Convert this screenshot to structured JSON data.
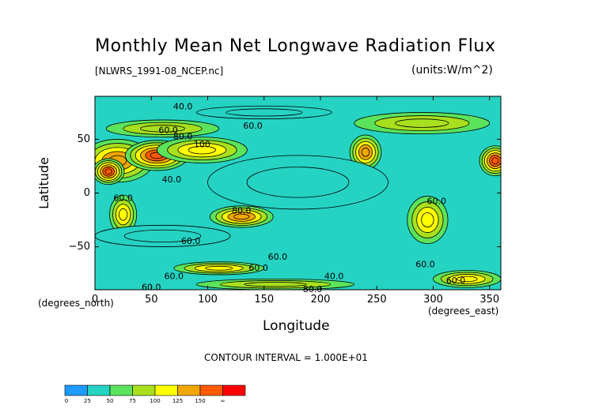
{
  "chart_data": {
    "type": "heatmap",
    "title": "Monthly Mean Net Longwave Radiation Flux",
    "subtitle": "[NLWRS_1991-08_NCEP.nc]",
    "units_label": "(units:W/m^2)",
    "xlabel": "Longitude",
    "ylabel": "Latitude",
    "xunits_label": "(degrees_east)",
    "yunits_label": "(degrees_north)",
    "contour_interval_label": "CONTOUR INTERVAL = 1.000E+01",
    "xlim": [
      0,
      360
    ],
    "ylim": [
      -90,
      90
    ],
    "x_ticks": [
      "0",
      "50",
      "100",
      "150",
      "200",
      "250",
      "300",
      "350"
    ],
    "y_ticks": [
      "50",
      "0",
      "−50"
    ],
    "x_tick_values": [
      0,
      50,
      100,
      150,
      200,
      250,
      300,
      350
    ],
    "y_tick_values": [
      50,
      0,
      -50
    ],
    "background_value": 45,
    "levels": [
      0,
      25,
      50,
      75,
      100,
      125,
      150
    ],
    "colorbar_ticks": [
      "0",
      "25",
      "50",
      "75",
      "100",
      "125",
      "150",
      "∞"
    ],
    "colorbar_colors": [
      "#1e9bff",
      "#25d3c3",
      "#5be35b",
      "#a8e01e",
      "#ffff00",
      "#f0a800",
      "#ff5a00",
      "#ff0000"
    ],
    "features": [
      {
        "lon": 20,
        "lat": 30,
        "rlon": 32,
        "rlat": 20,
        "value": 140
      },
      {
        "lon": 55,
        "lat": 35,
        "rlon": 28,
        "rlat": 14,
        "value": 160
      },
      {
        "lon": 95,
        "lat": 40,
        "rlon": 40,
        "rlat": 12,
        "value": 120
      },
      {
        "lon": 12,
        "lat": 20,
        "rlon": 14,
        "rlat": 12,
        "value": 165
      },
      {
        "lon": 355,
        "lat": 30,
        "rlon": 14,
        "rlat": 14,
        "value": 150
      },
      {
        "lon": 240,
        "lat": 38,
        "rlon": 14,
        "rlat": 16,
        "value": 130
      },
      {
        "lon": 130,
        "lat": -22,
        "rlon": 28,
        "rlat": 10,
        "value": 125
      },
      {
        "lon": 25,
        "lat": -20,
        "rlon": 12,
        "rlat": 18,
        "value": 120
      },
      {
        "lon": 295,
        "lat": -25,
        "rlon": 18,
        "rlat": 22,
        "value": 115
      },
      {
        "lon": 110,
        "lat": -70,
        "rlon": 40,
        "rlat": 6,
        "value": 100
      },
      {
        "lon": 160,
        "lat": -85,
        "rlon": 70,
        "rlat": 5,
        "value": 95
      },
      {
        "lon": 330,
        "lat": -80,
        "rlon": 30,
        "rlat": 8,
        "value": 100
      },
      {
        "lon": 60,
        "lat": 60,
        "rlon": 50,
        "rlat": 8,
        "value": 80
      },
      {
        "lon": 290,
        "lat": 65,
        "rlon": 60,
        "rlat": 10,
        "value": 75
      },
      {
        "lon": 180,
        "lat": 10,
        "rlon": 80,
        "rlat": 25,
        "value": 28
      },
      {
        "lon": 150,
        "lat": 75,
        "rlon": 60,
        "rlat": 6,
        "value": 25
      },
      {
        "lon": 60,
        "lat": -40,
        "rlon": 60,
        "rlat": 10,
        "value": 30
      }
    ],
    "contour_labels": [
      {
        "text": "40.0",
        "lon": 78,
        "lat": 80
      },
      {
        "text": "60.0",
        "lon": 140,
        "lat": 62
      },
      {
        "text": "60.0",
        "lon": 65,
        "lat": 58
      },
      {
        "text": "80.0",
        "lon": 78,
        "lat": 52
      },
      {
        "text": "100",
        "lon": 95,
        "lat": 45
      },
      {
        "text": "40.0",
        "lon": 68,
        "lat": 12
      },
      {
        "text": "60.0",
        "lon": 25,
        "lat": -5
      },
      {
        "text": "80.0",
        "lon": 130,
        "lat": -17
      },
      {
        "text": "60.0",
        "lon": 85,
        "lat": -45
      },
      {
        "text": "60.0",
        "lon": 162,
        "lat": -60
      },
      {
        "text": "60.0",
        "lon": 145,
        "lat": -70
      },
      {
        "text": "60.0",
        "lon": 70,
        "lat": -78
      },
      {
        "text": "40.0",
        "lon": 212,
        "lat": -78
      },
      {
        "text": "60.0",
        "lon": 293,
        "lat": -67
      },
      {
        "text": "60.0",
        "lon": 303,
        "lat": -8
      },
      {
        "text": "60.0",
        "lon": 50,
        "lat": -88
      },
      {
        "text": "80.0",
        "lon": 193,
        "lat": -90
      },
      {
        "text": "60.0",
        "lon": 320,
        "lat": -82
      }
    ]
  }
}
